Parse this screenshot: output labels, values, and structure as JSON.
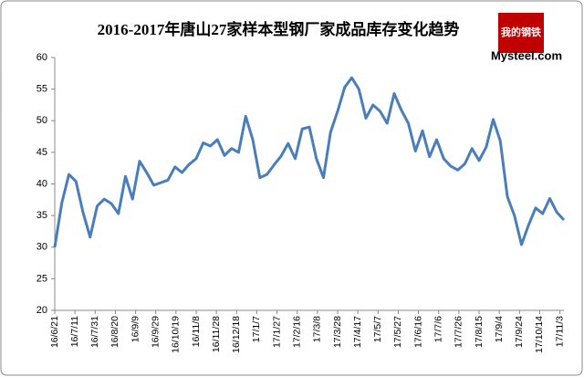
{
  "chart_data": {
    "type": "line",
    "title": "2016-2017年唐山27家样本型钢厂家成品库存变化趋势",
    "logo": {
      "top": "我的钢铁",
      "bottom": "Mysteel.com"
    },
    "x": [
      0,
      7,
      14,
      21,
      28,
      35,
      42,
      49,
      56,
      63,
      70,
      77,
      84,
      91,
      98,
      105,
      112,
      119,
      126,
      133,
      140,
      147,
      154,
      161,
      168,
      175,
      182,
      189,
      196,
      203,
      210,
      217,
      224,
      231,
      238,
      245,
      252,
      259,
      266,
      273,
      280,
      287,
      294,
      301,
      308,
      315,
      322,
      329,
      336,
      343,
      350,
      357,
      364,
      371,
      378,
      385,
      392,
      399,
      406,
      413,
      420,
      427,
      434,
      441,
      448,
      455,
      462,
      469,
      476,
      483,
      490,
      497,
      504
    ],
    "series": [
      {
        "color": "#4a7ebb",
        "values": [
          30,
          37,
          41.5,
          40.4,
          35.5,
          31.6,
          36.5,
          37.6,
          36.9,
          35.3,
          41.2,
          37.6,
          43.6,
          41.8,
          39.8,
          40.2,
          40.6,
          42.7,
          41.8,
          43.1,
          44,
          46.5,
          46,
          47,
          44.5,
          45.6,
          45,
          50.7,
          47,
          41,
          41.5,
          43,
          44.4,
          46.4,
          44,
          48.7,
          49,
          44,
          41,
          48.2,
          51.5,
          55.3,
          56.8,
          55,
          50.4,
          52.5,
          51.5,
          49.6,
          54.3,
          51.7,
          49.6,
          45.2,
          48.4,
          44.3,
          47,
          44,
          42.8,
          42.2,
          43.2,
          45.6,
          43.7,
          45.8,
          50.2,
          46.8,
          38,
          35,
          30.4,
          33.5,
          36.2,
          35.3,
          37.7,
          35.5,
          34.3
        ]
      }
    ],
    "xlim": [
      0,
      504
    ],
    "xticks": [
      {
        "value": 0,
        "label": "16/6/21"
      },
      {
        "value": 20,
        "label": "16/7/11"
      },
      {
        "value": 40,
        "label": "16/7/31"
      },
      {
        "value": 60,
        "label": "16/8/20"
      },
      {
        "value": 80,
        "label": "16/9/9"
      },
      {
        "value": 100,
        "label": "16/9/29"
      },
      {
        "value": 120,
        "label": "16/10/19"
      },
      {
        "value": 140,
        "label": "16/11/8"
      },
      {
        "value": 160,
        "label": "16/11/28"
      },
      {
        "value": 180,
        "label": "16/12/18"
      },
      {
        "value": 200,
        "label": "17/1/7"
      },
      {
        "value": 220,
        "label": "17/1/27"
      },
      {
        "value": 240,
        "label": "17/2/16"
      },
      {
        "value": 260,
        "label": "17/3/8"
      },
      {
        "value": 280,
        "label": "17/3/28"
      },
      {
        "value": 300,
        "label": "17/4/17"
      },
      {
        "value": 320,
        "label": "17/5/7"
      },
      {
        "value": 340,
        "label": "17/5/27"
      },
      {
        "value": 360,
        "label": "17/6/16"
      },
      {
        "value": 380,
        "label": "17/7/6"
      },
      {
        "value": 400,
        "label": "17/7/26"
      },
      {
        "value": 420,
        "label": "17/8/15"
      },
      {
        "value": 440,
        "label": "17/9/4"
      },
      {
        "value": 460,
        "label": "17/9/24"
      },
      {
        "value": 480,
        "label": "17/10/14"
      },
      {
        "value": 500,
        "label": "17/11/3"
      }
    ],
    "ylim": [
      20,
      60
    ],
    "yticks": [
      20,
      25,
      30,
      35,
      40,
      45,
      50,
      55,
      60
    ]
  }
}
